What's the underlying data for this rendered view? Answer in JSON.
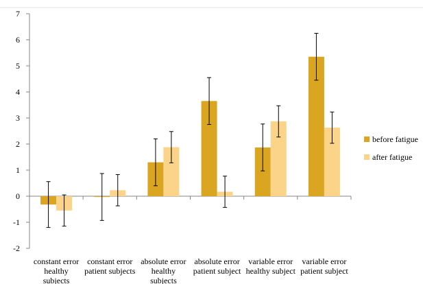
{
  "chart_data": {
    "type": "bar",
    "categories": [
      [
        "constant error",
        "healthy",
        "subjects"
      ],
      [
        "constant error",
        "patient subjects"
      ],
      [
        "absolute error",
        "healthy",
        "subjects"
      ],
      [
        "absolute error",
        "patient subject"
      ],
      [
        "variable error",
        "healthy subject"
      ],
      [
        "variable error",
        "patient subject"
      ]
    ],
    "series": [
      {
        "name": "before fatigue",
        "color": "#DAA520",
        "values": [
          -0.32,
          -0.03,
          1.3,
          3.65,
          1.87,
          5.35
        ],
        "error": [
          0.88,
          0.9,
          0.9,
          0.9,
          0.9,
          0.9
        ]
      },
      {
        "name": "after fatigue",
        "color": "#FBD48A",
        "values": [
          -0.55,
          0.23,
          1.88,
          0.17,
          2.87,
          2.63
        ],
        "error": [
          0.6,
          0.6,
          0.6,
          0.6,
          0.6,
          0.6
        ]
      }
    ],
    "ylim": [
      -2,
      7
    ],
    "yticks": [
      "-2",
      "-1",
      "0",
      "1",
      "2",
      "3",
      "4",
      "5",
      "6",
      "7"
    ],
    "legend_position": "right",
    "grid": false
  }
}
